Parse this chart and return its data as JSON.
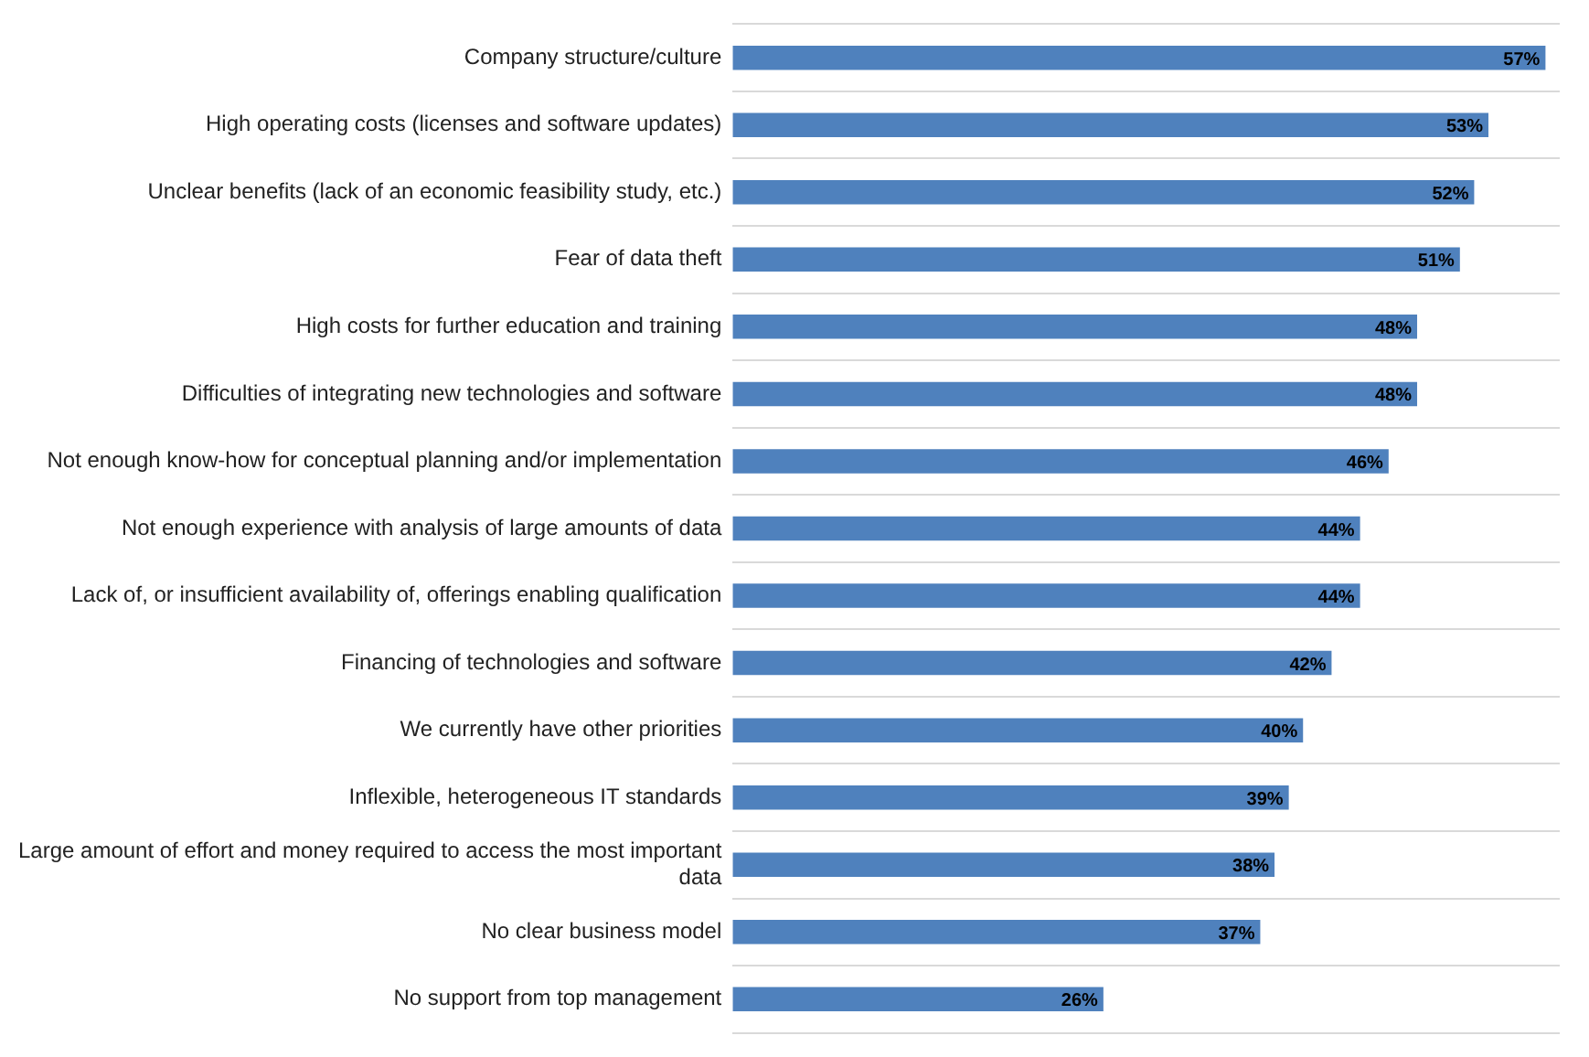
{
  "chart_data": {
    "type": "bar",
    "orientation": "horizontal",
    "categories": [
      "Company structure/culture",
      "High operating costs (licenses and software updates)",
      "Unclear benefits (lack of an economic feasibility study, etc.)",
      "Fear of data theft",
      "High costs for further education and training",
      "Difficulties of integrating new technologies and software",
      "Not enough know-how for conceptual planning and/or implementation",
      "Not enough experience with analysis of large amounts of data",
      "Lack of, or insufficient availability of, offerings enabling qualification",
      "Financing of technologies and software",
      "We currently have other priorities",
      "Inflexible, heterogeneous IT standards",
      "Large amount of effort and money required to access the most important data",
      "No clear business model",
      "No support from top management"
    ],
    "values": [
      57,
      53,
      52,
      51,
      48,
      48,
      46,
      44,
      44,
      42,
      40,
      39,
      38,
      37,
      26
    ],
    "value_labels": [
      "57%",
      "53%",
      "52%",
      "51%",
      "48%",
      "48%",
      "46%",
      "44%",
      "44%",
      "42%",
      "40%",
      "39%",
      "38%",
      "37%",
      "26%"
    ],
    "color": "#4f81bd",
    "xlim": [
      0,
      58
    ],
    "grid": "y",
    "tick_labels": "y",
    "legend": false
  }
}
